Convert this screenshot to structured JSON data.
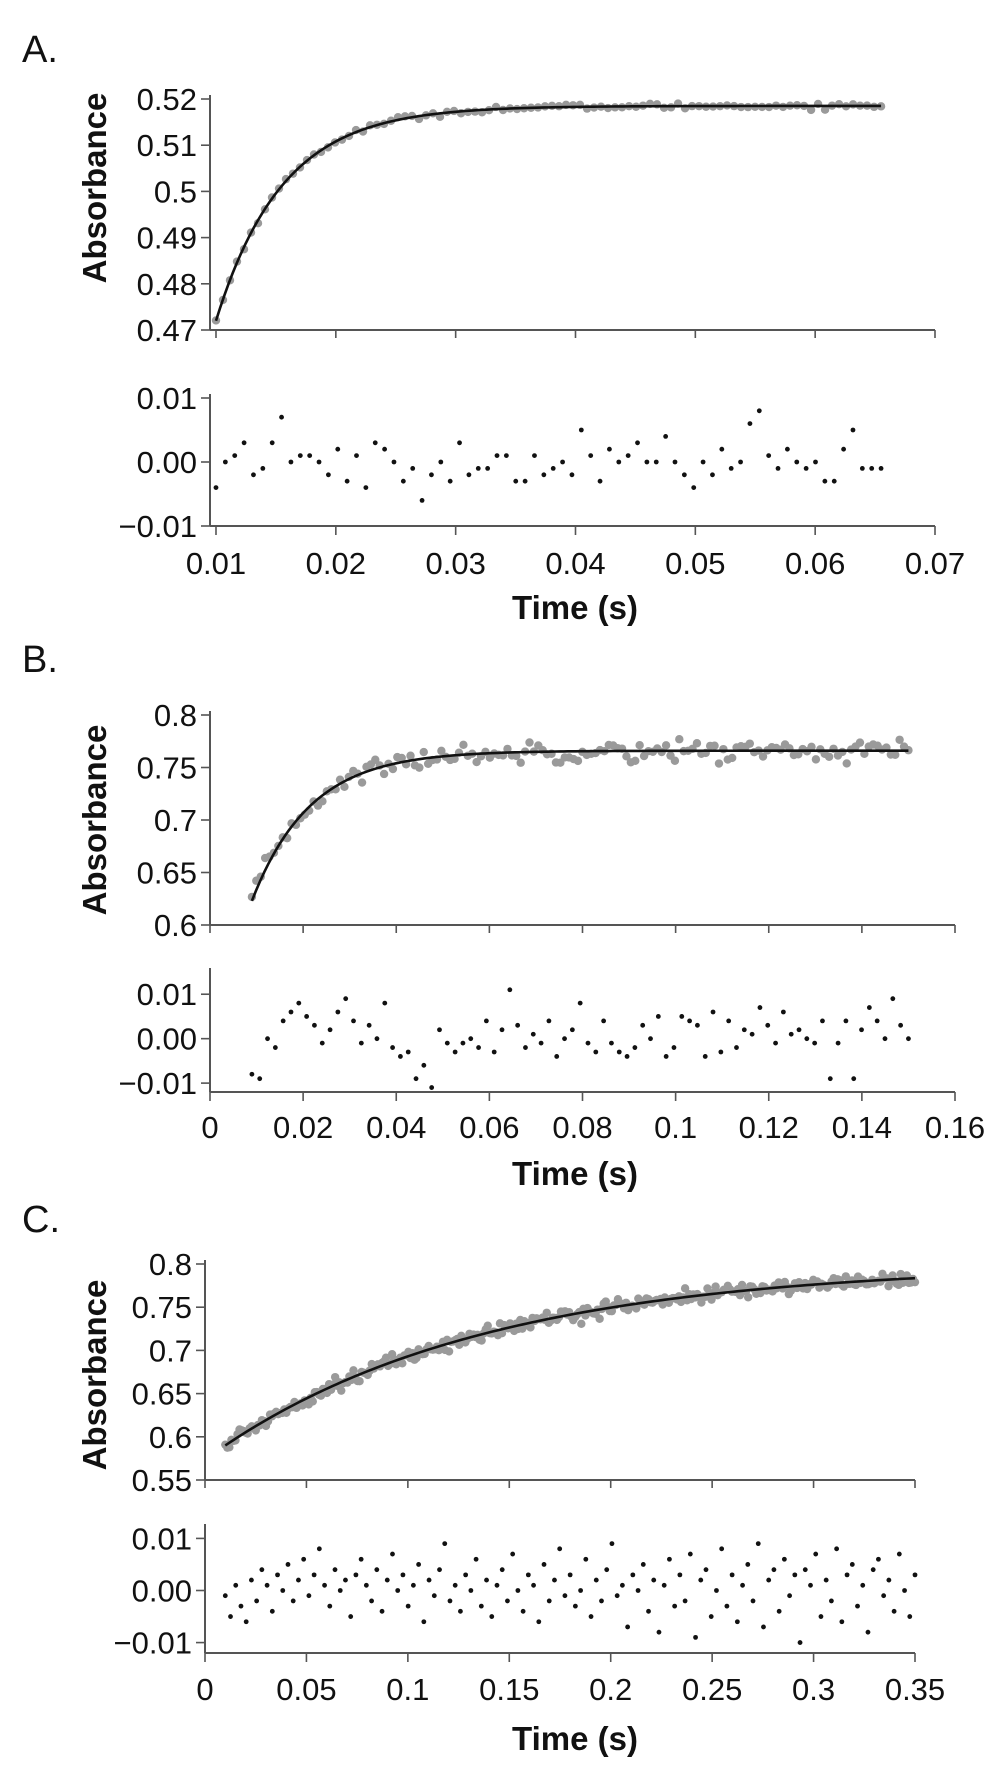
{
  "colors": {
    "data_points": "#9a9a9a",
    "fit_line": "#111111",
    "residual_points": "#111111",
    "axis": "#555555"
  },
  "chart_data": [
    {
      "panel": "A.",
      "type": "scatter",
      "ylabel": "Absorbance",
      "xlim": [
        0.0095,
        0.07
      ],
      "ylim": [
        0.47,
        0.52
      ],
      "yticks": [
        "0.47",
        "0.48",
        "0.49",
        "0.5",
        "0.51",
        "0.52"
      ],
      "ytick_values": [
        0.47,
        0.48,
        0.49,
        0.5,
        0.51,
        0.52
      ],
      "x_start": 0.01,
      "x_end": 0.0655,
      "fit": {
        "a_inf": 0.5185,
        "amplitude": 0.0465,
        "k_per_s": 180,
        "t0": 0.01
      },
      "n_points": 96,
      "data_noise": 0.0003,
      "residuals": {
        "ylim": [
          -0.01,
          0.01
        ],
        "yticks": [
          "0.01",
          "0.00",
          "−0.01"
        ],
        "ytick_values": [
          0.01,
          0.0,
          -0.01
        ],
        "values": [
          -0.004,
          0.0,
          0.001,
          0.003,
          -0.002,
          -0.001,
          0.003,
          0.007,
          0.0,
          0.001,
          0.001,
          0.0,
          -0.002,
          0.002,
          -0.003,
          0.001,
          -0.004,
          0.003,
          0.002,
          0.0,
          -0.003,
          -0.001,
          -0.006,
          -0.002,
          0.0,
          -0.003,
          0.003,
          -0.002,
          -0.001,
          -0.001,
          0.001,
          0.001,
          -0.003,
          -0.003,
          0.001,
          -0.002,
          -0.001,
          0.0,
          -0.002,
          0.005,
          0.001,
          -0.003,
          0.002,
          0.0,
          0.001,
          0.003,
          0.0,
          0.0,
          0.004,
          0.0,
          -0.002,
          -0.004,
          0.0,
          -0.002,
          0.002,
          -0.001,
          0.0,
          0.006,
          0.008,
          0.001,
          -0.001,
          0.002,
          0.0,
          -0.001,
          0.0,
          -0.003,
          -0.003,
          0.002,
          0.005,
          -0.001,
          -0.001,
          -0.001
        ]
      },
      "xlabel": "Time (s)",
      "xticks": [
        "0.01",
        "0.02",
        "0.03",
        "0.04",
        "0.05",
        "0.06",
        "0.07"
      ],
      "xtick_values": [
        0.01,
        0.02,
        0.03,
        0.04,
        0.05,
        0.06,
        0.07
      ]
    },
    {
      "panel": "B.",
      "type": "scatter",
      "ylabel": "Absorbance",
      "xlim": [
        0,
        0.16
      ],
      "ylim": [
        0.6,
        0.8
      ],
      "yticks": [
        "0.6",
        "0.65",
        "0.7",
        "0.75",
        "0.8"
      ],
      "ytick_values": [
        0.6,
        0.65,
        0.7,
        0.75,
        0.8
      ],
      "x_start": 0.009,
      "x_end": 0.15,
      "fit": {
        "a_inf": 0.766,
        "amplitude": 0.143,
        "k_per_s": 80,
        "t0": 0.009
      },
      "n_points": 150,
      "data_noise": 0.005,
      "residuals": {
        "ylim": [
          -0.012,
          0.015
        ],
        "yticks": [
          "0.01",
          "0.00",
          "−0.01"
        ],
        "ytick_values": [
          0.01,
          0.0,
          -0.01
        ],
        "values": [
          -0.008,
          -0.009,
          0.0,
          -0.002,
          0.004,
          0.006,
          0.008,
          0.005,
          0.003,
          -0.001,
          0.002,
          0.006,
          0.009,
          0.004,
          -0.001,
          0.003,
          0.0,
          0.008,
          -0.002,
          -0.004,
          -0.003,
          -0.009,
          -0.006,
          -0.011,
          0.002,
          -0.001,
          -0.003,
          -0.001,
          0.0,
          -0.002,
          0.004,
          -0.003,
          0.002,
          0.011,
          0.003,
          -0.002,
          0.001,
          -0.001,
          0.004,
          -0.004,
          0.0,
          0.002,
          0.008,
          -0.001,
          -0.003,
          0.004,
          -0.001,
          -0.003,
          -0.004,
          -0.002,
          0.003,
          0.0,
          0.005,
          -0.004,
          -0.002,
          0.005,
          0.004,
          0.003,
          -0.004,
          0.006,
          -0.003,
          0.004,
          -0.002,
          0.002,
          0.001,
          0.007,
          0.003,
          -0.001,
          0.006,
          0.001,
          0.002,
          0.0,
          -0.001,
          0.004,
          -0.009,
          -0.001,
          0.004,
          -0.009,
          0.002,
          0.007,
          0.004,
          0.0,
          0.009,
          0.003,
          0.0
        ]
      },
      "xlabel": "Time (s)",
      "xticks": [
        "0",
        "0.02",
        "0.04",
        "0.06",
        "0.08",
        "0.1",
        "0.12",
        "0.14",
        "0.16"
      ],
      "xtick_values": [
        0,
        0.02,
        0.04,
        0.06,
        0.08,
        0.1,
        0.12,
        0.14,
        0.16
      ]
    },
    {
      "panel": "C.",
      "type": "scatter",
      "ylabel": "Absorbance",
      "xlim": [
        0,
        0.35
      ],
      "ylim": [
        0.55,
        0.8
      ],
      "yticks": [
        "0.55",
        "0.6",
        "0.65",
        "0.7",
        "0.75",
        "0.8"
      ],
      "ytick_values": [
        0.55,
        0.6,
        0.65,
        0.7,
        0.75,
        0.8
      ],
      "x_start": 0.01,
      "x_end": 0.35,
      "fit": {
        "a_inf": 0.8,
        "amplitude": 0.21,
        "k_per_s": 7.5,
        "t0": 0.01
      },
      "n_points": 340,
      "data_noise": 0.004,
      "residuals": {
        "ylim": [
          -0.012,
          0.012
        ],
        "yticks": [
          "0.01",
          "0.00",
          "−0.01"
        ],
        "ytick_values": [
          0.01,
          0.0,
          -0.01
        ],
        "values": [
          -0.001,
          -0.005,
          0.001,
          -0.003,
          -0.006,
          0.002,
          -0.002,
          0.004,
          0.001,
          -0.004,
          0.003,
          0.0,
          0.005,
          -0.002,
          0.002,
          0.006,
          -0.001,
          0.003,
          0.008,
          0.001,
          -0.003,
          0.004,
          0.0,
          0.002,
          -0.005,
          0.003,
          0.006,
          0.001,
          -0.002,
          0.004,
          -0.004,
          0.002,
          0.007,
          0.0,
          0.003,
          -0.003,
          0.001,
          0.005,
          -0.006,
          0.002,
          -0.001,
          0.004,
          0.009,
          -0.002,
          0.001,
          -0.004,
          0.003,
          0.0,
          0.006,
          -0.003,
          0.002,
          -0.005,
          0.001,
          0.004,
          -0.002,
          0.007,
          0.0,
          -0.004,
          0.003,
          0.001,
          -0.006,
          0.005,
          -0.002,
          0.002,
          0.008,
          -0.001,
          0.003,
          -0.003,
          0.0,
          0.006,
          -0.005,
          0.002,
          -0.002,
          0.004,
          0.009,
          -0.001,
          0.001,
          -0.007,
          0.003,
          0.0,
          0.005,
          -0.004,
          0.002,
          -0.008,
          0.001,
          0.006,
          -0.003,
          0.003,
          -0.002,
          0.007,
          -0.009,
          0.002,
          0.004,
          -0.005,
          0.0,
          0.008,
          -0.003,
          0.003,
          -0.006,
          0.001,
          0.005,
          -0.002,
          0.009,
          -0.007,
          0.002,
          0.004,
          -0.004,
          0.006,
          -0.001,
          0.003,
          -0.01,
          0.004,
          0.001,
          0.007,
          -0.005,
          0.002,
          -0.002,
          0.008,
          -0.006,
          0.003,
          0.005,
          -0.003,
          0.001,
          -0.008,
          0.004,
          0.006,
          -0.001,
          0.002,
          -0.004,
          0.007,
          0.0,
          -0.005,
          0.003
        ]
      },
      "xlabel": "Time (s)",
      "xticks": [
        "0",
        "0.05",
        "0.1",
        "0.15",
        "0.2",
        "0.25",
        "0.3",
        "0.35"
      ],
      "xtick_values": [
        0,
        0.05,
        0.1,
        0.15,
        0.2,
        0.25,
        0.3,
        0.35
      ]
    }
  ]
}
